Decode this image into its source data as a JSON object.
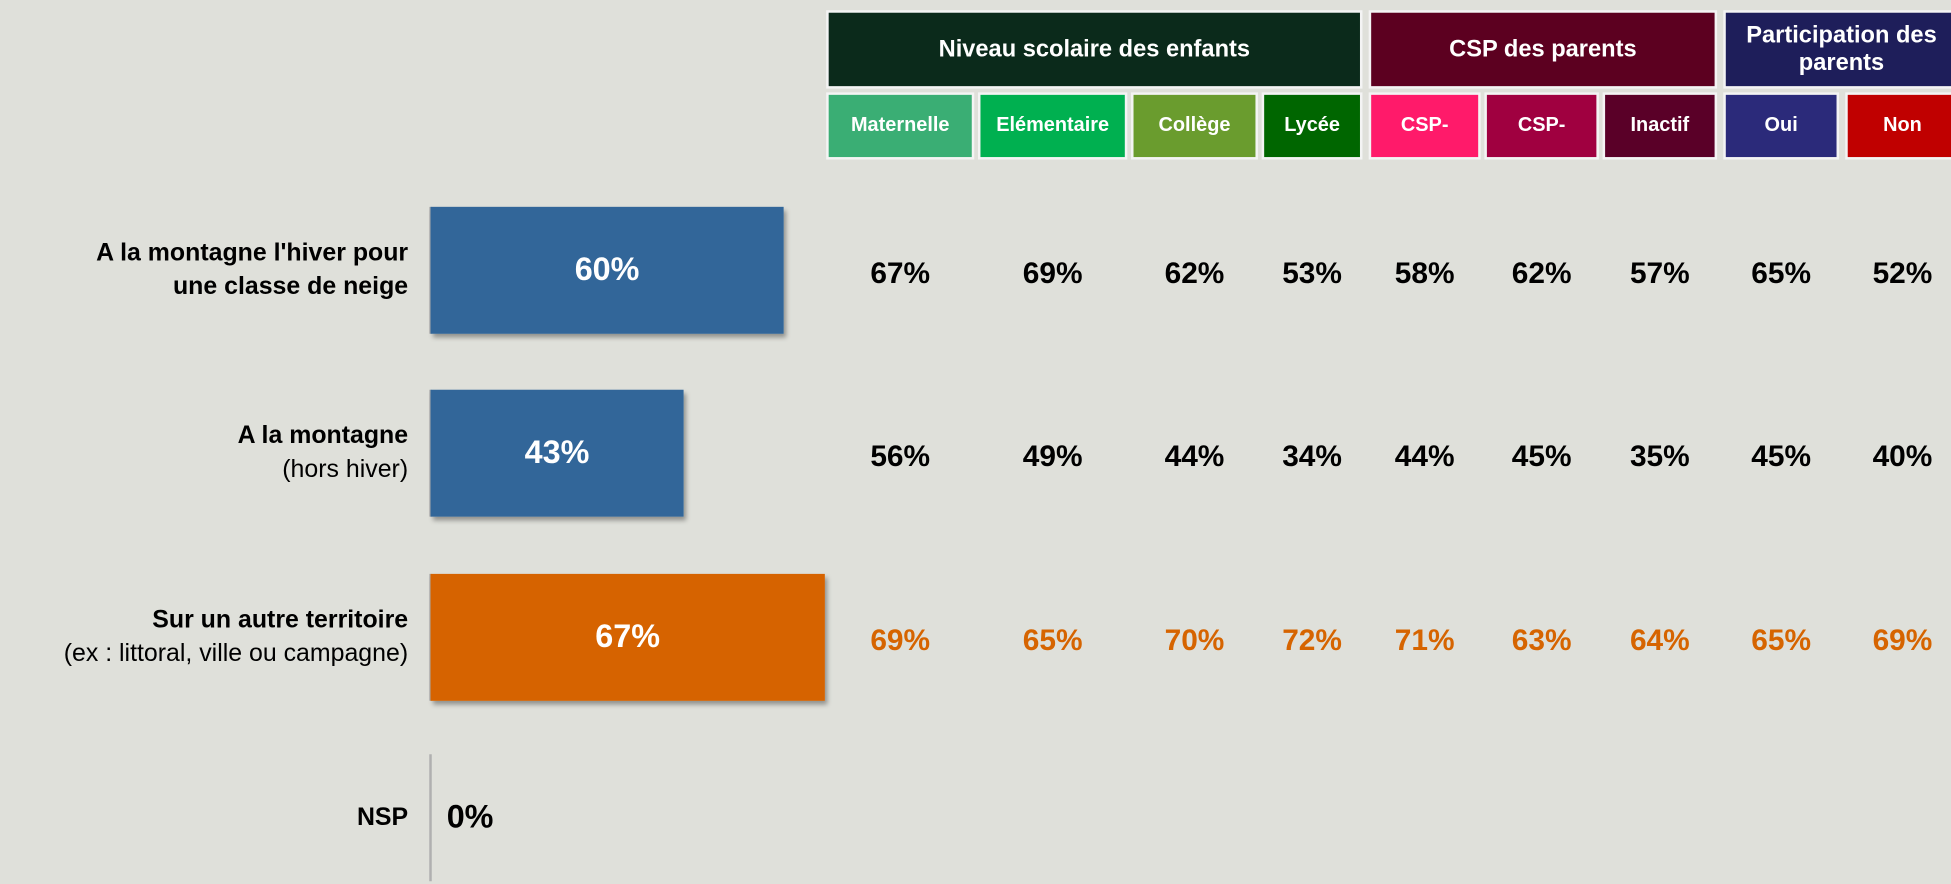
{
  "chart_data": {
    "type": "bar",
    "orientation": "horizontal",
    "categories": [
      "A la montagne l'hiver pour une classe de neige",
      "A la montagne",
      "Sur un autre territoire",
      "NSP"
    ],
    "category_notes": [
      null,
      "(hors hiver)",
      "(ex : littoral, ville ou campagne)",
      null
    ],
    "values": [
      60,
      43,
      67,
      0
    ],
    "value_labels": [
      "60%",
      "43%",
      "67%",
      "0%"
    ],
    "colors": [
      "#336699",
      "#336699",
      "#d66400",
      "#336699"
    ],
    "xlim": [
      0,
      100
    ]
  },
  "table": {
    "groups": [
      {
        "title": "Niveau scolaire des enfants",
        "color": "#0b2a1b",
        "columns": [
          {
            "name": "Maternelle",
            "color": "#3aae74"
          },
          {
            "name": "Elémentaire",
            "color": "#00b050"
          },
          {
            "name": "Collège",
            "color": "#6a9c2e"
          },
          {
            "name": "Lycée",
            "color": "#006600"
          }
        ]
      },
      {
        "title": "CSP des parents",
        "color": "#5c0020",
        "columns": [
          {
            "name": "CSP-",
            "color": "#ff1a6a"
          },
          {
            "name": "CSP-",
            "color": "#a00040"
          },
          {
            "name": "Inactif",
            "color": "#5a0028"
          }
        ]
      },
      {
        "title": "Participation des parents",
        "color": "#1e1e5a",
        "columns": [
          {
            "name": "Oui",
            "color": "#2b2a7a"
          },
          {
            "name": "Non",
            "color": "#c00000"
          }
        ]
      }
    ],
    "rows": [
      [
        "67%",
        "69%",
        "62%",
        "53%",
        "58%",
        "62%",
        "57%",
        "65%",
        "52%"
      ],
      [
        "56%",
        "49%",
        "44%",
        "34%",
        "44%",
        "45%",
        "35%",
        "45%",
        "40%"
      ],
      [
        "69%",
        "65%",
        "70%",
        "72%",
        "71%",
        "63%",
        "64%",
        "65%",
        "69%"
      ]
    ],
    "row_colors": [
      "#000000",
      "#000000",
      "#d66400"
    ]
  }
}
